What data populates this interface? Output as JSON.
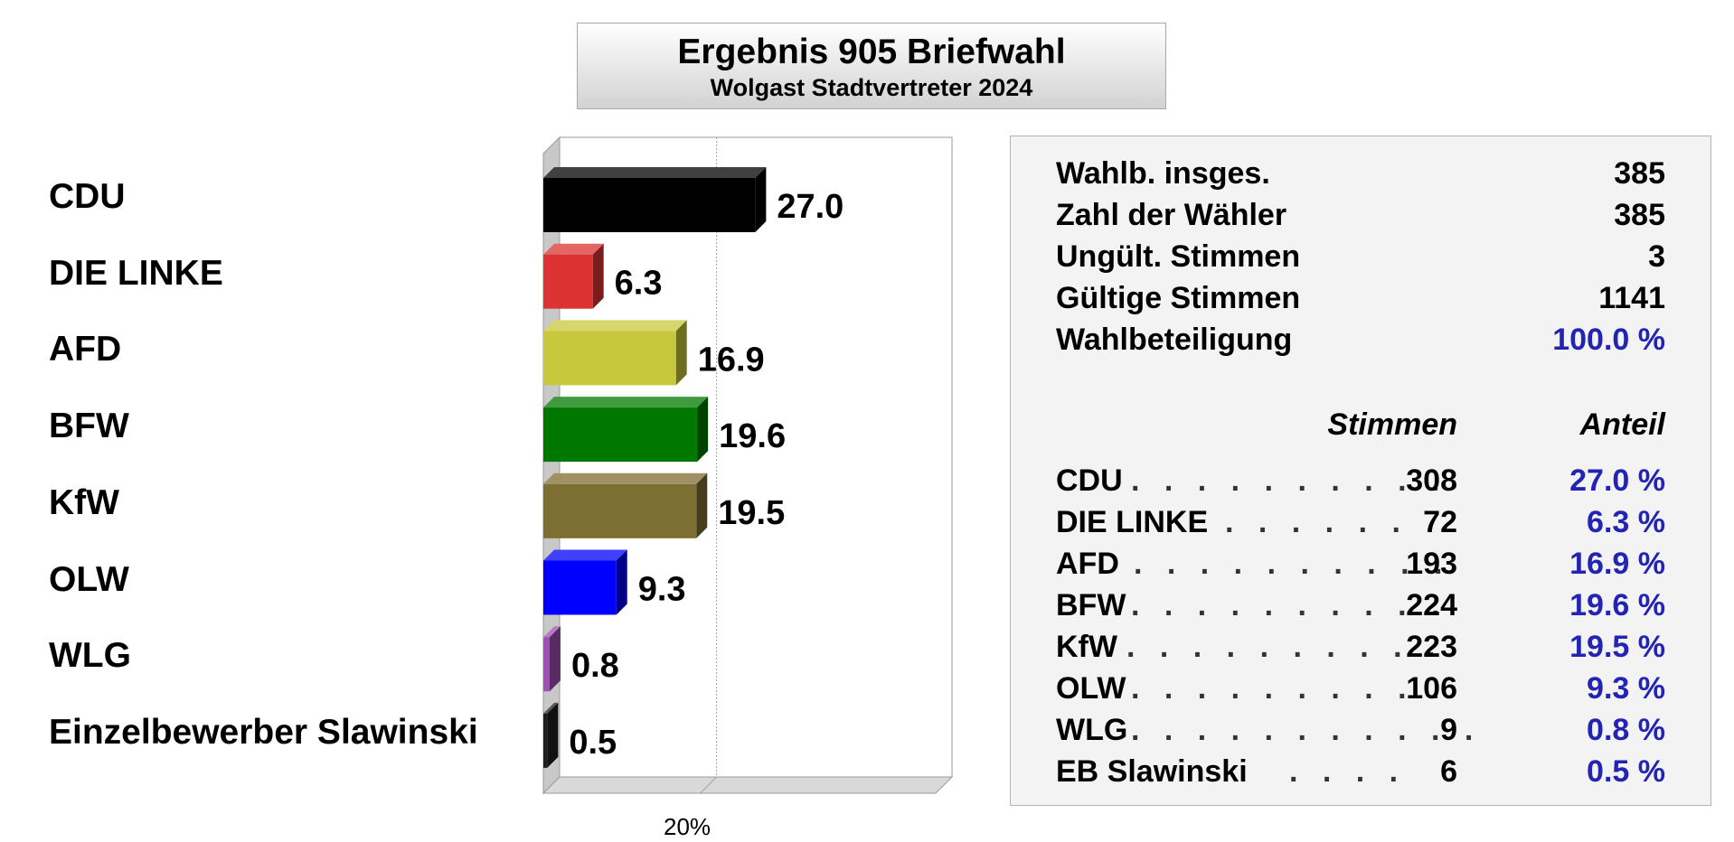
{
  "header": {
    "title": "Ergebnis 905 Briefwahl",
    "subtitle": "Wolgast Stadtvertreter 2024"
  },
  "chart_data": {
    "type": "bar",
    "orientation": "horizontal",
    "style": "3d",
    "categories": [
      "CDU",
      "DIE LINKE",
      "AFD",
      "BFW",
      "KfW",
      "OLW",
      "WLG",
      "Einzelbewerber Slawinski"
    ],
    "values": [
      27.0,
      6.3,
      16.9,
      19.6,
      19.5,
      9.3,
      0.8,
      0.5
    ],
    "value_labels": [
      "27.0",
      "6.3",
      "16.9",
      "19.6",
      "19.5",
      "9.3",
      "0.8",
      "0.5"
    ],
    "colors": [
      "#000000",
      "#dc3232",
      "#c8c83c",
      "#007800",
      "#7d6e32",
      "#0000ff",
      "#a050b4",
      "#1e1e1e"
    ],
    "xlim": [
      0,
      50
    ],
    "x_ticks": [
      20
    ],
    "x_tick_labels": [
      "20%"
    ],
    "gridlines": true
  },
  "stats": {
    "rows": [
      {
        "label": "Wahlb. insges.",
        "value": "385",
        "highlight": false
      },
      {
        "label": "Zahl der Wähler",
        "value": "385",
        "highlight": false
      },
      {
        "label": "Ungült. Stimmen",
        "value": "3",
        "highlight": false
      },
      {
        "label": "Gültige Stimmen",
        "value": "1141",
        "highlight": false
      },
      {
        "label": "Wahlbeteiligung",
        "value": "100.0 %",
        "highlight": true
      }
    ]
  },
  "results": {
    "header_votes": "Stimmen",
    "header_share": "Anteil",
    "rows": [
      {
        "party": "CDU",
        "dots": ". . . . . . . . . .",
        "votes": "308",
        "share": "27.0 %"
      },
      {
        "party": "DIE LINKE",
        "dots": ". . . . . .",
        "votes": "72",
        "share": "6.3 %"
      },
      {
        "party": "AFD",
        "dots": ". . . . . . . . . .",
        "votes": "193",
        "share": "16.9 %"
      },
      {
        "party": "BFW",
        "dots": ". . . . . . . . . .",
        "votes": "224",
        "share": "19.6 %"
      },
      {
        "party": "KfW",
        "dots": ". . . . . . . . . .",
        "votes": "223",
        "share": "19.5 %"
      },
      {
        "party": "OLW",
        "dots": ". . . . . . . . . .",
        "votes": "106",
        "share": "9.3 %"
      },
      {
        "party": "WLG",
        "dots": ". . . . . . . . . . .",
        "votes": "9",
        "share": "0.8 %"
      },
      {
        "party": "EB Slawinski",
        "dots": ". . . .",
        "votes": "6",
        "share": "0.5 %"
      }
    ]
  }
}
